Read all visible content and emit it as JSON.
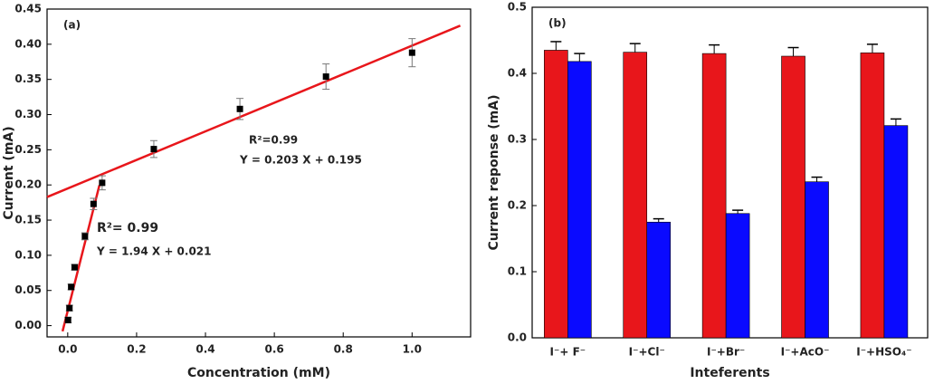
{
  "chart_data": [
    {
      "type": "scatter",
      "panel_label": "(a)",
      "x_label": "Concentration (mM)",
      "y_label": "Current (mA)",
      "x": [
        0.001,
        0.005,
        0.01,
        0.02,
        0.05,
        0.075,
        0.1,
        0.25,
        0.5,
        0.75,
        1.0
      ],
      "values": [
        0.008,
        0.025,
        0.055,
        0.083,
        0.127,
        0.173,
        0.203,
        0.251,
        0.308,
        0.354,
        0.388
      ],
      "errors": [
        0.004,
        0.004,
        0.004,
        0.004,
        0.005,
        0.008,
        0.01,
        0.012,
        0.015,
        0.018,
        0.02
      ],
      "color": "#000000",
      "fits": [
        {
          "slope": 0.203,
          "intercept": 0.195,
          "x_range": [
            -0.06,
            1.14
          ],
          "color": "#e8161b"
        },
        {
          "slope": 1.94,
          "intercept": 0.021,
          "x_range": [
            -0.015,
            0.092
          ],
          "color": "#e8161b"
        }
      ],
      "annotations": [
        "R²=0.99",
        "Y = 0.203 X + 0.195",
        "R²= 0.99",
        "Y = 1.94 X + 0.021"
      ],
      "xlim": [
        -0.06,
        1.17
      ],
      "ylim": [
        -0.016,
        0.45
      ],
      "xticks": [
        {
          "value": 0,
          "label": "0.0"
        },
        0.2,
        0.4,
        0.6,
        0.8,
        {
          "value": 1,
          "label": "1.0"
        }
      ],
      "yticks": [
        {
          "value": 0,
          "label": "0.00"
        },
        0.05,
        {
          "value": 0.1,
          "label": "0.10"
        },
        0.15,
        {
          "value": 0.2,
          "label": "0.20"
        },
        0.25,
        {
          "value": 0.3,
          "label": "0.30"
        },
        0.35,
        {
          "value": 0.4,
          "label": "0.40"
        },
        0.45
      ]
    },
    {
      "type": "bar",
      "panel_label": "(b)",
      "x_label": "Inteferents",
      "y_label": "Current reponse (mA)",
      "categories": [
        "I⁻+ F⁻",
        "I⁻+Cl⁻",
        "I⁻+Br⁻",
        "I⁻+AcO⁻",
        "I⁻+HSO₄⁻"
      ],
      "series": [
        {
          "color": "#e8161b",
          "values": [
            0.435,
            0.432,
            0.43,
            0.426,
            0.431
          ],
          "errors": [
            0.013,
            0.013,
            0.013,
            0.013,
            0.013
          ]
        },
        {
          "color": "#0a0aff",
          "values": [
            0.418,
            0.175,
            0.188,
            0.236,
            0.321
          ],
          "errors": [
            0.012,
            0.005,
            0.005,
            0.007,
            0.01
          ]
        }
      ],
      "ylim": [
        0,
        0.5
      ],
      "yticks": [
        {
          "value": 0,
          "label": "0.0"
        },
        0.1,
        0.2,
        0.3,
        0.4,
        0.5
      ]
    }
  ]
}
